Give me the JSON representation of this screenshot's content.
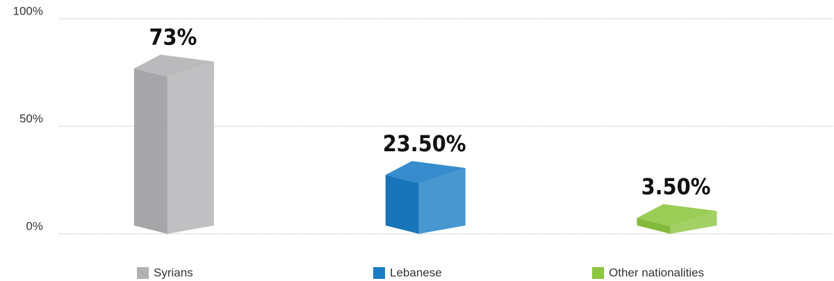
{
  "chart_data": {
    "type": "bar3d",
    "categories": [
      "Syrians",
      "Lebanese",
      "Other nationalities"
    ],
    "values": [
      73,
      23.5,
      3.5
    ],
    "value_labels": [
      "73%",
      "23.50%",
      "3.50%"
    ],
    "colors": [
      "#b1b1b3",
      "#1b7dc6",
      "#8dc63f"
    ],
    "ylim": [
      0,
      100
    ],
    "yticks": [
      {
        "value": 0,
        "label": "0%"
      },
      {
        "value": 50,
        "label": "50%"
      },
      {
        "value": 100,
        "label": "100%"
      }
    ],
    "grid": true,
    "legend": "bottom"
  }
}
